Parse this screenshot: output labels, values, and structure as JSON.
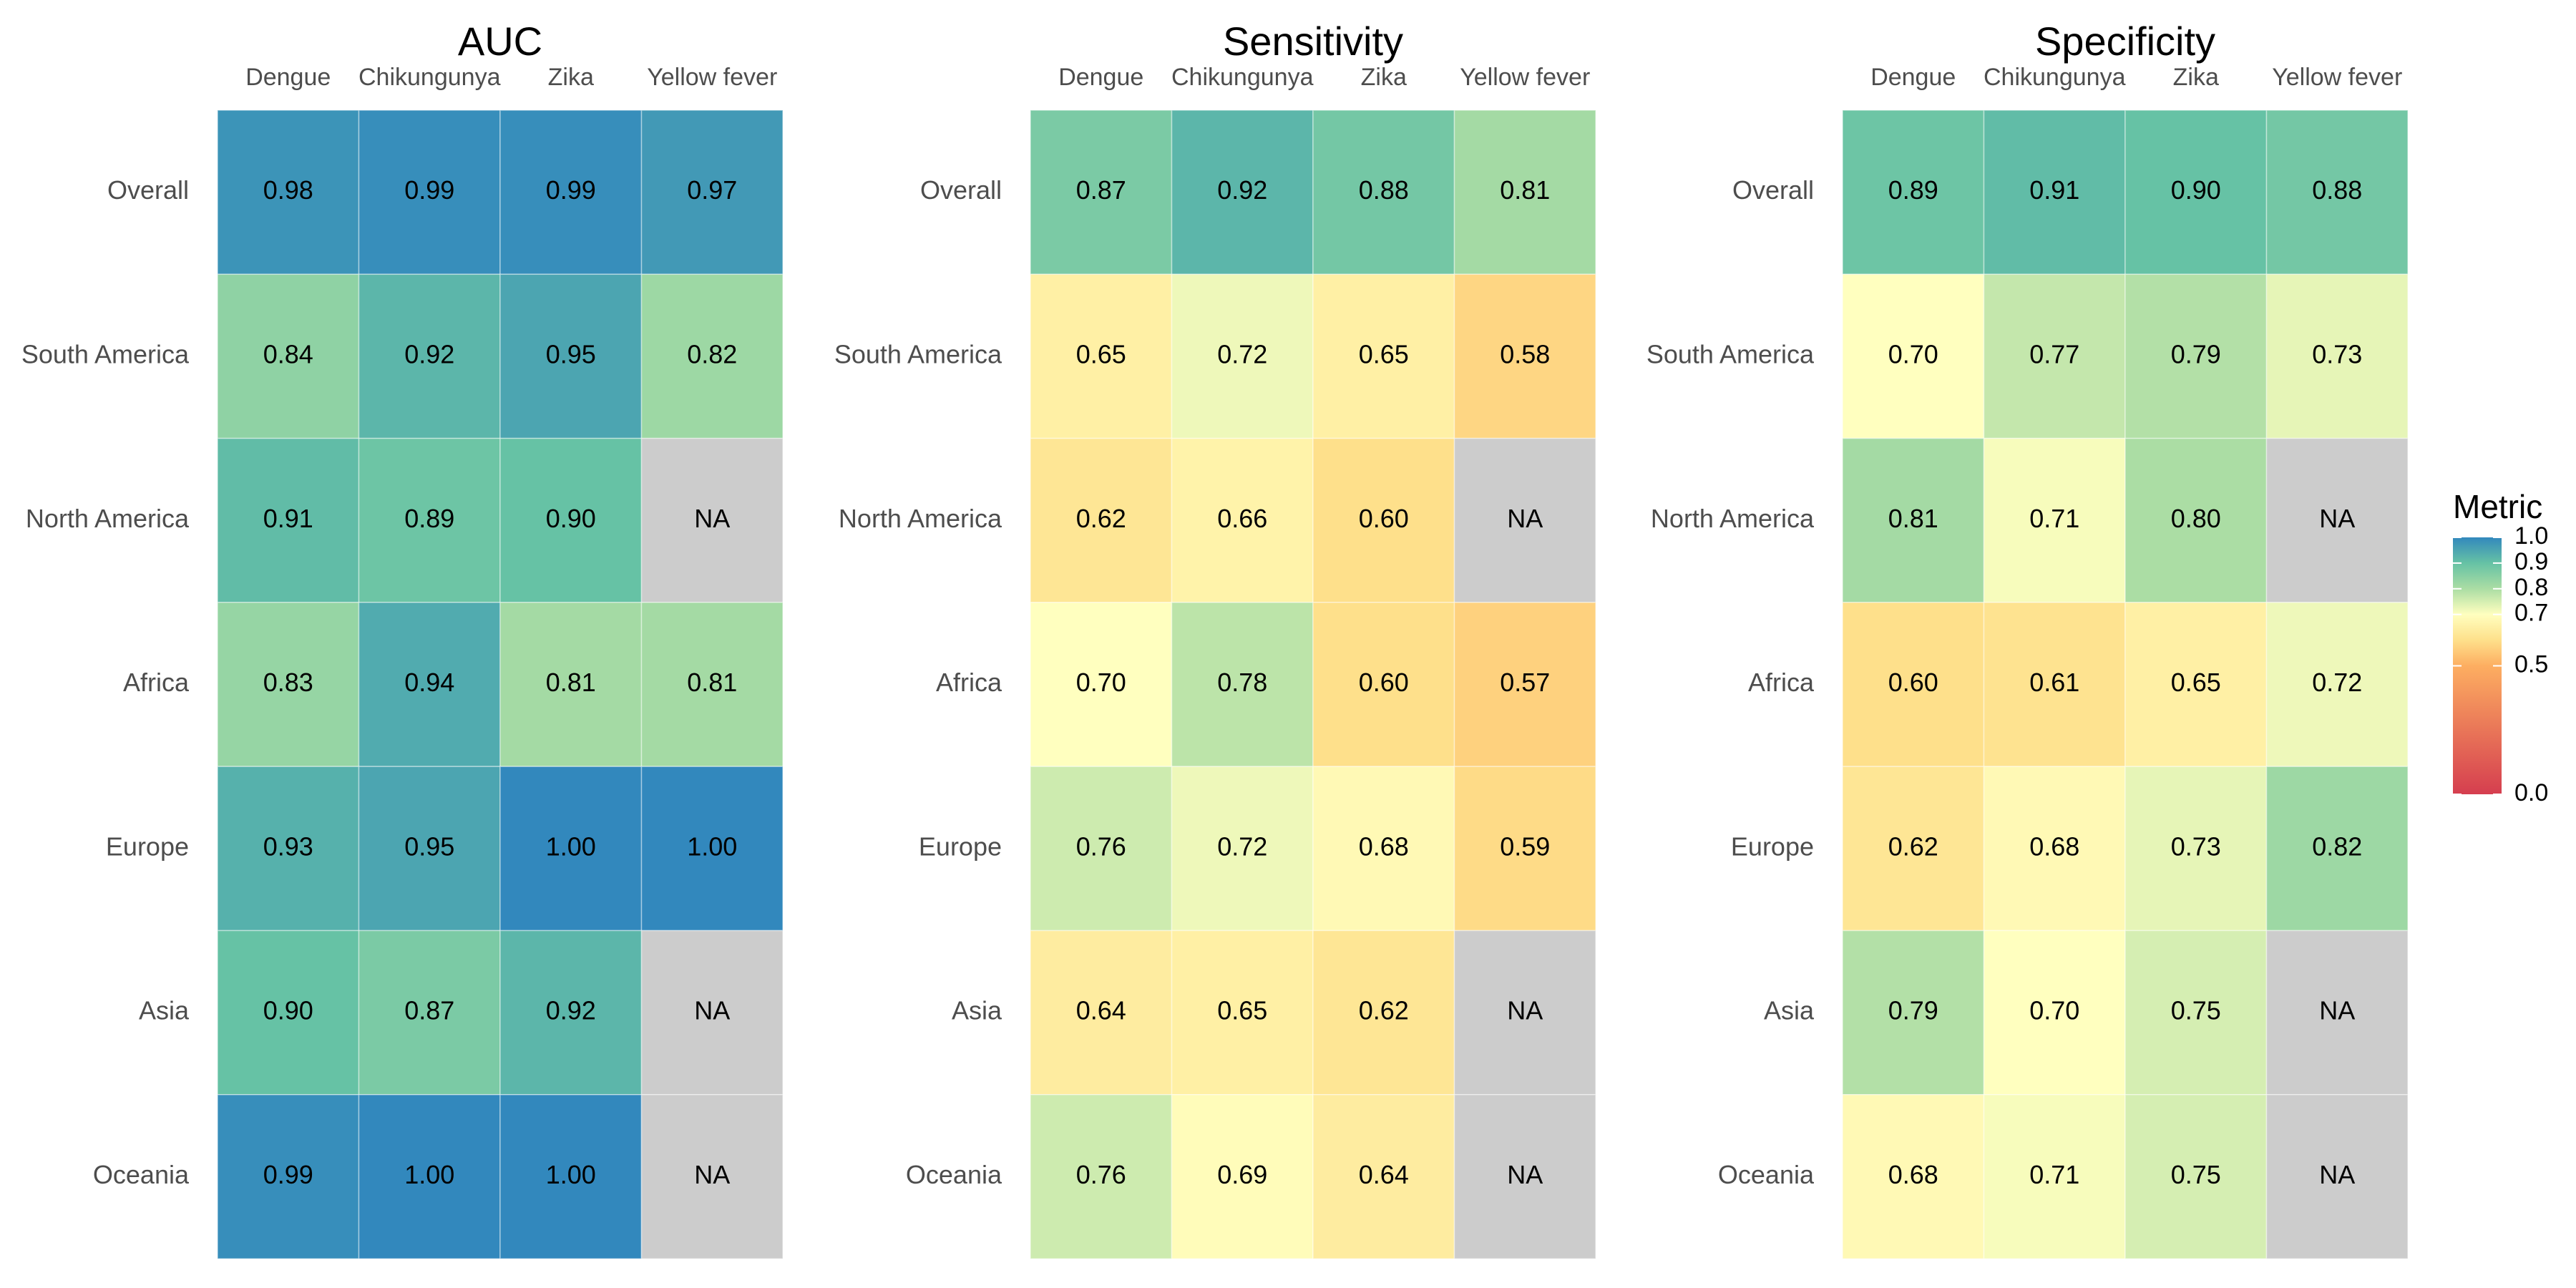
{
  "chart_data": {
    "type": "heatmap",
    "rows": [
      "Overall",
      "South America",
      "North America",
      "Africa",
      "Europe",
      "Asia",
      "Oceania"
    ],
    "columns": [
      "Dengue",
      "Chikungunya",
      "Zika",
      "Yellow fever"
    ],
    "missing_label": "NA",
    "missing_color": "#cccccc",
    "panels": [
      {
        "title": "AUC",
        "values": [
          [
            "0.98",
            "0.99",
            "0.99",
            "0.97"
          ],
          [
            "0.84",
            "0.92",
            "0.95",
            "0.82"
          ],
          [
            "0.91",
            "0.89",
            "0.90",
            null
          ],
          [
            "0.83",
            "0.94",
            "0.81",
            "0.81"
          ],
          [
            "0.93",
            "0.95",
            "1.00",
            "1.00"
          ],
          [
            "0.90",
            "0.87",
            "0.92",
            null
          ],
          [
            "0.99",
            "1.00",
            "1.00",
            null
          ]
        ]
      },
      {
        "title": "Sensitivity",
        "values": [
          [
            "0.87",
            "0.92",
            "0.88",
            "0.81"
          ],
          [
            "0.65",
            "0.72",
            "0.65",
            "0.58"
          ],
          [
            "0.62",
            "0.66",
            "0.60",
            null
          ],
          [
            "0.70",
            "0.78",
            "0.60",
            "0.57"
          ],
          [
            "0.76",
            "0.72",
            "0.68",
            "0.59"
          ],
          [
            "0.64",
            "0.65",
            "0.62",
            null
          ],
          [
            "0.76",
            "0.69",
            "0.64",
            null
          ]
        ]
      },
      {
        "title": "Specificity",
        "values": [
          [
            "0.89",
            "0.91",
            "0.90",
            "0.88"
          ],
          [
            "0.70",
            "0.77",
            "0.79",
            "0.73"
          ],
          [
            "0.81",
            "0.71",
            "0.80",
            null
          ],
          [
            "0.60",
            "0.61",
            "0.65",
            "0.72"
          ],
          [
            "0.62",
            "0.68",
            "0.73",
            "0.82"
          ],
          [
            "0.79",
            "0.70",
            "0.75",
            null
          ],
          [
            "0.68",
            "0.71",
            "0.75",
            null
          ]
        ]
      }
    ],
    "legend": {
      "title": "Metric",
      "ticks": [
        "1.0",
        "0.9",
        "0.8",
        "0.7",
        "0.5",
        "0.0"
      ],
      "color_stops": [
        {
          "value": 0.0,
          "color": "#d53e4f"
        },
        {
          "value": 0.5,
          "color": "#fdae61"
        },
        {
          "value": 0.6,
          "color": "#fee08b"
        },
        {
          "value": 0.7,
          "color": "#ffffbf"
        },
        {
          "value": 0.8,
          "color": "#abdda4"
        },
        {
          "value": 0.9,
          "color": "#66c2a5"
        },
        {
          "value": 1.0,
          "color": "#3288bd"
        }
      ]
    }
  }
}
